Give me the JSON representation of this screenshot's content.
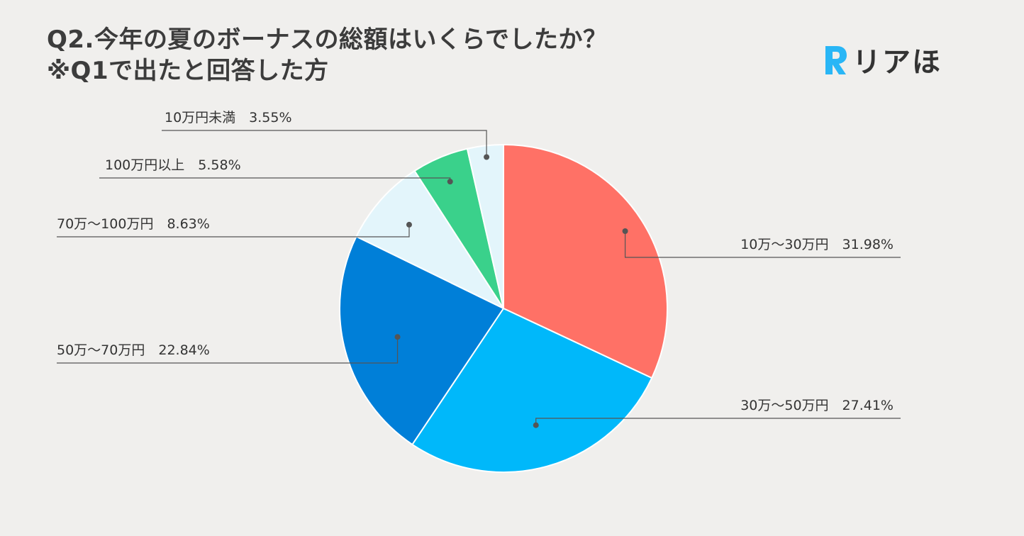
{
  "title": {
    "line1": "Q2.今年の夏のボーナスの総額はいくらでしたか？",
    "line2": "※Q1で出たと回答した方"
  },
  "logo": {
    "text": "リアほ",
    "mark": "R",
    "colors": {
      "mark": "#29b6f6",
      "text": "#333333"
    }
  },
  "chart_data": {
    "type": "pie",
    "start_angle": "12 o'clock",
    "direction": "clockwise",
    "slices": [
      {
        "label": "10万～30万円",
        "value": 31.98,
        "display": "31.98%",
        "color": "#ff7166"
      },
      {
        "label": "30万～50万円",
        "value": 27.41,
        "display": "27.41%",
        "color": "#00b8fa"
      },
      {
        "label": "50万～70万円",
        "value": 22.84,
        "display": "22.84%",
        "color": "#007fd8"
      },
      {
        "label": "70万～100万円",
        "value": 8.63,
        "display": "8.63%",
        "color": "#e3f5fb"
      },
      {
        "label": "100万円以上",
        "value": 5.58,
        "display": "5.58%",
        "color": "#3ad18b"
      },
      {
        "label": "10万円未満",
        "value": 3.55,
        "display": "3.55%",
        "color": "#e3f5fb"
      }
    ]
  }
}
